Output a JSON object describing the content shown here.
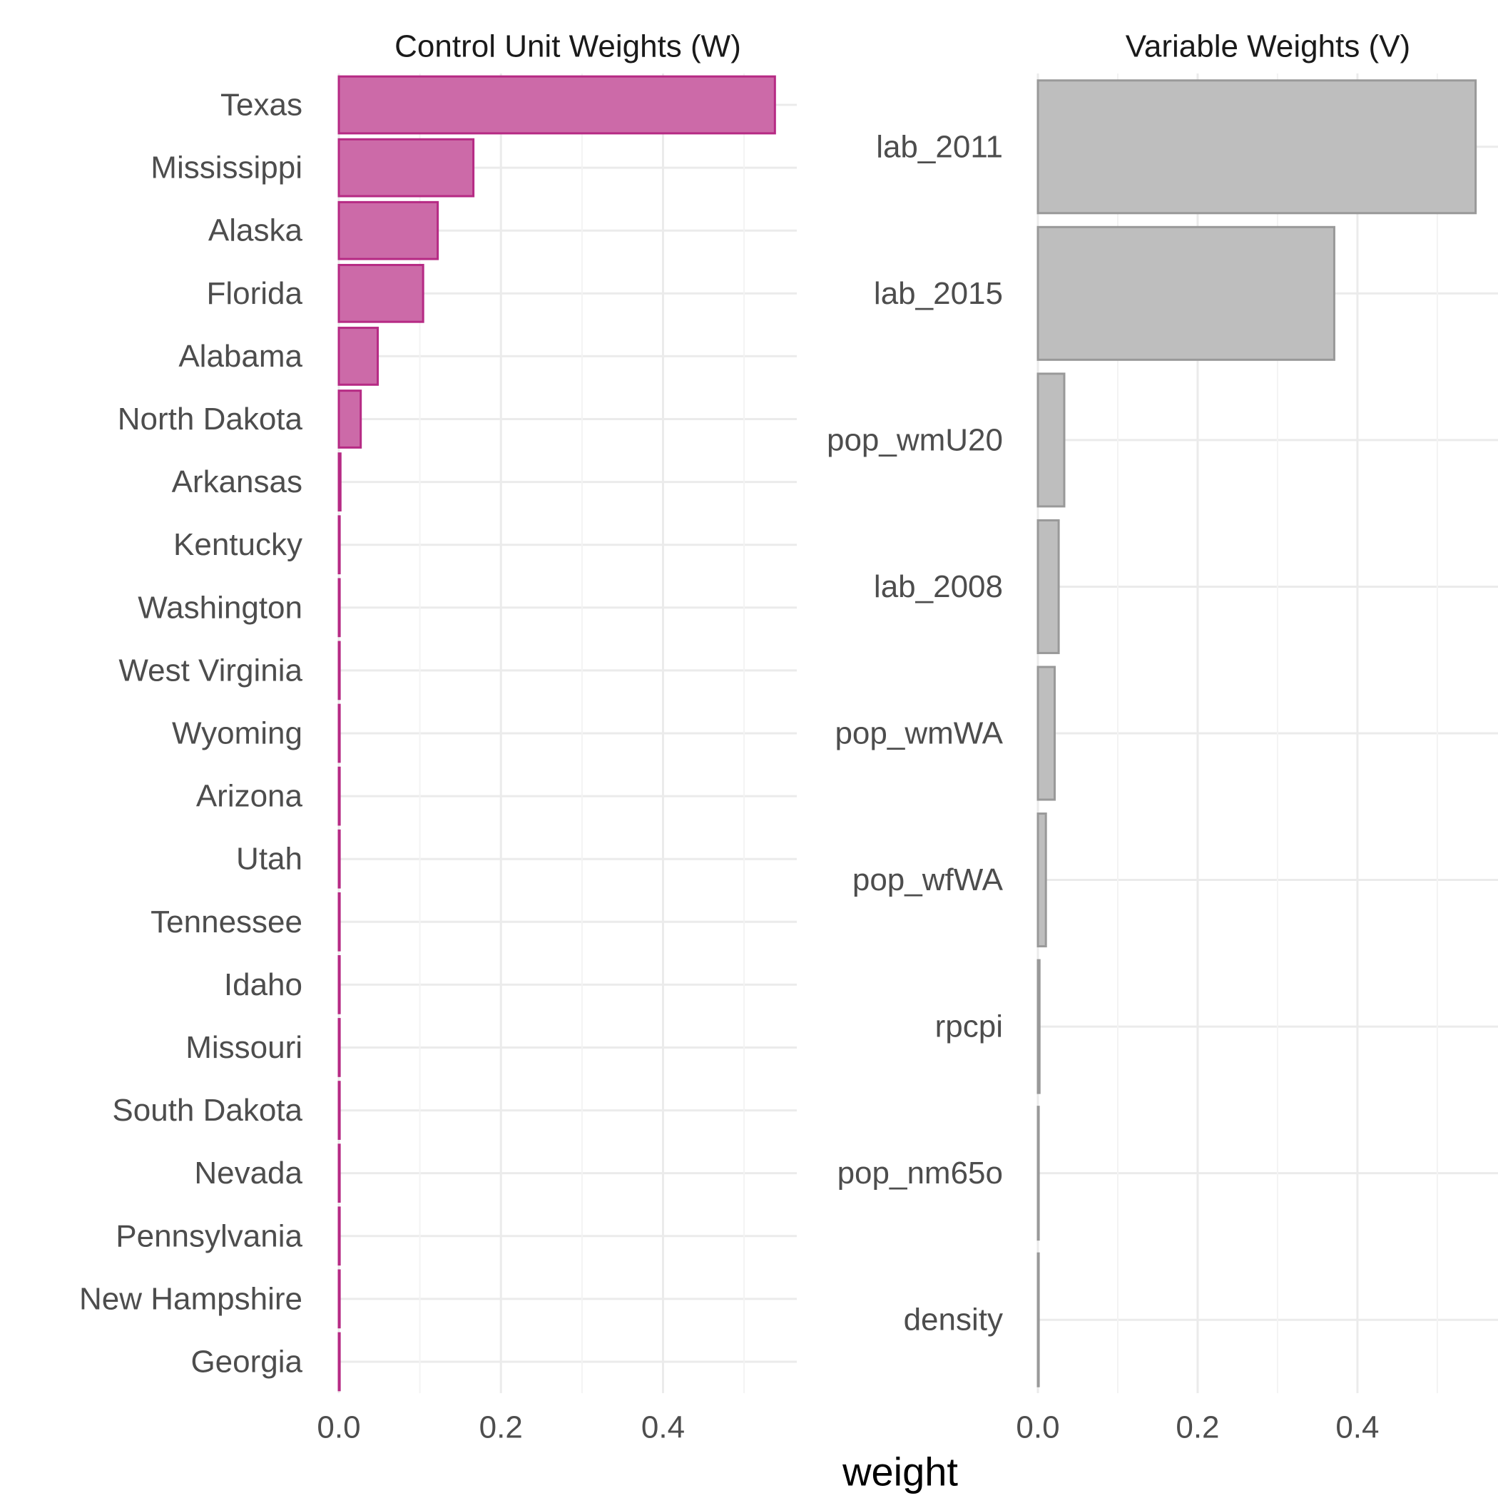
{
  "chart_data": [
    {
      "type": "bar",
      "orientation": "horizontal",
      "title": "Control Unit Weights (W)",
      "fill_color": "#cc6aa8",
      "border_color": "#b62a84",
      "categories": [
        "Texas",
        "Mississippi",
        "Alaska",
        "Florida",
        "Alabama",
        "North Dakota",
        "Arkansas",
        "Kentucky",
        "Washington",
        "West Virginia",
        "Wyoming",
        "Arizona",
        "Utah",
        "Tennessee",
        "Idaho",
        "Missouri",
        "South Dakota",
        "Nevada",
        "Pennsylvania",
        "New Hampshire",
        "Georgia"
      ],
      "values": [
        0.538,
        0.166,
        0.122,
        0.104,
        0.048,
        0.027,
        0.002,
        0.001,
        0.001,
        0.001,
        0.001,
        0.001,
        0.001,
        0.001,
        0.001,
        0.001,
        0.001,
        0.001,
        0.001,
        0.001,
        0.001
      ],
      "xlim": [
        0,
        0.565
      ],
      "xticks": [
        0,
        0.2,
        0.4
      ],
      "xtick_labels": [
        "0.0",
        "0.2",
        "0.4"
      ],
      "grid": true
    },
    {
      "type": "bar",
      "orientation": "horizontal",
      "title": "Variable Weights (V)",
      "fill_color": "#bebebe",
      "border_color": "#999999",
      "categories": [
        "lab_2011",
        "lab_2015",
        "pop_wmU20",
        "lab_2008",
        "pop_wmWA",
        "pop_wfWA",
        "rpcpi",
        "pop_nm65o",
        "density"
      ],
      "values": [
        0.548,
        0.371,
        0.033,
        0.026,
        0.021,
        0.01,
        0.002,
        0.001,
        0.001
      ],
      "xlim": [
        0,
        0.576
      ],
      "xticks": [
        0,
        0.2,
        0.4
      ],
      "xtick_labels": [
        "0.0",
        "0.2",
        "0.4"
      ],
      "grid": true
    }
  ],
  "x_axis_title": "weight"
}
